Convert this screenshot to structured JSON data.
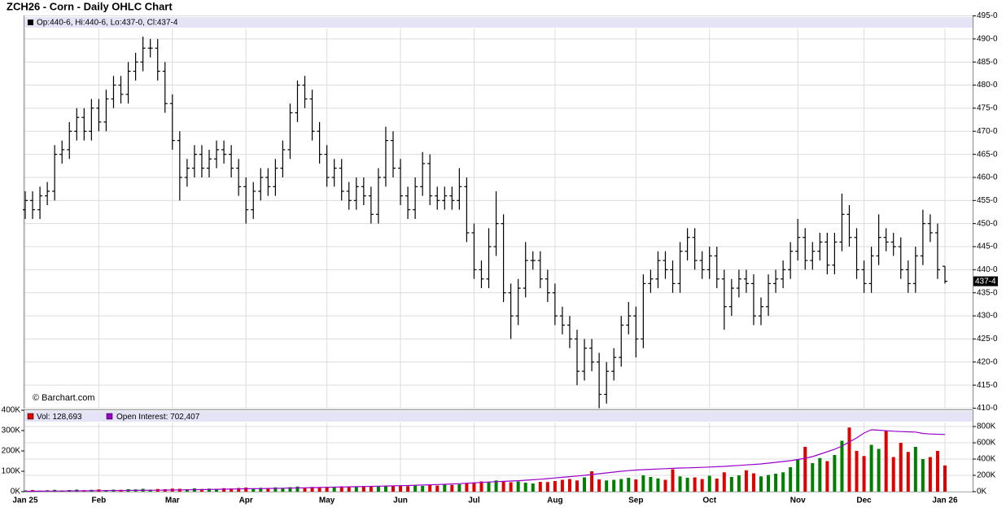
{
  "chart_data": [
    {
      "type": "ohlc",
      "title": "ZCH26 - Corn - Daily OHLC Chart",
      "header": "Op:440-6, Hi:440-6, Lo:437-0, Cl:437-4",
      "source": "© Barchart.com",
      "color": "#000000",
      "grid": true,
      "open": [
        453,
        455,
        453,
        456,
        457,
        465,
        466,
        470,
        473,
        470,
        475,
        472,
        477,
        480,
        478,
        483,
        485,
        488,
        488,
        483,
        476,
        468,
        460,
        462,
        465,
        462,
        464,
        466,
        465,
        462,
        458,
        453,
        457,
        460,
        458,
        462,
        466,
        474,
        480,
        477,
        470,
        465,
        460,
        462,
        457,
        455,
        458,
        456,
        452,
        460,
        468,
        462,
        456,
        453,
        458,
        463,
        456,
        455,
        456,
        455,
        458,
        448,
        440,
        438,
        445,
        450,
        435,
        430,
        436,
        442,
        442,
        438,
        435,
        430,
        428,
        425,
        418,
        423,
        420,
        413,
        418,
        421,
        428,
        430,
        425,
        437,
        438,
        442,
        440,
        437,
        444,
        447,
        442,
        440,
        443,
        438,
        432,
        436,
        438,
        437,
        430,
        432,
        437,
        438,
        440,
        444,
        447,
        442,
        444,
        446,
        441,
        446,
        452,
        447,
        440,
        437,
        443,
        447,
        446,
        445,
        440,
        437,
        443,
        450,
        448,
        440.75
      ],
      "high": [
        457,
        457,
        458,
        459,
        467,
        468,
        472,
        475,
        475,
        477,
        477,
        479,
        482,
        482,
        485,
        487,
        490.5,
        490,
        490,
        485,
        478,
        470,
        464,
        467,
        467,
        466,
        468,
        468,
        467,
        464,
        460,
        459,
        462,
        462,
        464,
        468,
        476,
        481,
        482,
        479,
        472,
        467,
        464,
        464,
        459,
        460,
        460,
        458,
        462,
        471,
        470,
        464,
        458,
        460,
        465.5,
        465,
        458,
        458,
        458,
        462,
        460,
        450,
        442,
        449,
        457,
        452,
        437,
        438,
        446,
        444,
        444,
        440,
        437,
        432,
        430,
        427,
        425,
        425,
        422,
        420,
        423,
        430,
        433,
        432,
        439,
        440,
        444,
        444,
        442,
        446,
        449,
        449,
        444,
        445,
        445,
        440,
        438,
        440,
        440,
        439,
        434,
        439,
        440,
        442,
        446,
        451,
        449,
        446,
        448,
        448,
        448,
        456.5,
        454,
        449,
        442,
        445,
        452,
        449,
        448,
        447,
        442,
        445,
        453,
        452,
        450,
        440.75
      ],
      "low": [
        451,
        451,
        451,
        454,
        455,
        463,
        464,
        468,
        468,
        468,
        470,
        470,
        475,
        476,
        476,
        481,
        483,
        486,
        481,
        474,
        466,
        455,
        458,
        460,
        460,
        460,
        462,
        463,
        460,
        456,
        450,
        451,
        455,
        456,
        456,
        460,
        464,
        472,
        475,
        468,
        463,
        458,
        458,
        455,
        453,
        453,
        454,
        450,
        450,
        458,
        460,
        454,
        451,
        451,
        456,
        454,
        453,
        453,
        453,
        453,
        446,
        438,
        436,
        436,
        443,
        433,
        425,
        428,
        434,
        440,
        436,
        433,
        428,
        426,
        423,
        415,
        416,
        418,
        410,
        411,
        416,
        419,
        426,
        421,
        423,
        435,
        436,
        438,
        435,
        435,
        442,
        440,
        438,
        438,
        436,
        427,
        430,
        434,
        435,
        428,
        428,
        430,
        435,
        436,
        438,
        442,
        440,
        440,
        442,
        439,
        439,
        444,
        445,
        438,
        435,
        435,
        441,
        444,
        443,
        438,
        435,
        435,
        441,
        446,
        438,
        437
      ],
      "close": [
        455,
        453,
        456,
        457,
        465,
        466,
        470,
        473,
        470,
        475,
        472,
        477,
        480,
        478,
        483,
        485,
        488,
        488,
        483,
        476,
        468,
        460,
        462,
        465,
        462,
        464,
        466,
        465,
        462,
        458,
        453,
        457,
        460,
        458,
        462,
        466,
        474,
        480,
        477,
        470,
        465,
        460,
        462,
        457,
        455,
        458,
        456,
        452,
        460,
        468,
        462,
        456,
        453,
        458,
        463,
        456,
        455,
        456,
        455,
        458,
        448,
        440,
        438,
        445,
        450,
        435,
        430,
        436,
        442,
        442,
        438,
        435,
        430,
        428,
        425,
        418,
        423,
        420,
        413,
        418,
        421,
        428,
        430,
        425,
        437,
        438,
        442,
        440,
        437,
        444,
        447,
        442,
        440,
        443,
        438,
        432,
        436,
        438,
        437,
        430,
        432,
        437,
        438,
        440,
        444,
        447,
        442,
        444,
        446,
        441,
        446,
        452,
        447,
        440,
        437,
        443,
        447,
        446,
        445,
        440,
        437,
        443,
        450,
        448,
        440,
        437.5
      ],
      "ylim": [
        410,
        495
      ],
      "yticks": [
        {
          "value": 410,
          "label": "410-0"
        },
        {
          "value": 415,
          "label": "415-0"
        },
        {
          "value": 420,
          "label": "420-0"
        },
        {
          "value": 425,
          "label": "425-0"
        },
        {
          "value": 430,
          "label": "430-0"
        },
        {
          "value": 435,
          "label": "435-0"
        },
        {
          "value": 440,
          "label": "440-0"
        },
        {
          "value": 445,
          "label": "445-0"
        },
        {
          "value": 450,
          "label": "450-0"
        },
        {
          "value": 455,
          "label": "455-0"
        },
        {
          "value": 460,
          "label": "460-0"
        },
        {
          "value": 465,
          "label": "465-0"
        },
        {
          "value": 470,
          "label": "470-0"
        },
        {
          "value": 475,
          "label": "475-0"
        },
        {
          "value": 480,
          "label": "480-0"
        },
        {
          "value": 485,
          "label": "485-0"
        },
        {
          "value": 490,
          "label": "490-0"
        },
        {
          "value": 495,
          "label": "495-0"
        }
      ],
      "last_label": {
        "value": 437.5,
        "label": "437-4"
      }
    },
    {
      "type": "bar",
      "grid": true,
      "categories": [
        "Jan 25",
        null,
        null,
        null,
        null,
        null,
        null,
        null,
        null,
        null,
        "Feb",
        null,
        null,
        null,
        null,
        null,
        null,
        null,
        null,
        null,
        "Mar",
        null,
        null,
        null,
        null,
        null,
        null,
        null,
        null,
        null,
        "Apr",
        null,
        null,
        null,
        null,
        null,
        null,
        null,
        null,
        null,
        null,
        "May",
        null,
        null,
        null,
        null,
        null,
        null,
        null,
        null,
        null,
        "Jun",
        null,
        null,
        null,
        null,
        null,
        null,
        null,
        null,
        null,
        "Jul",
        null,
        null,
        null,
        null,
        null,
        null,
        null,
        null,
        null,
        null,
        "Aug",
        null,
        null,
        null,
        null,
        null,
        null,
        null,
        null,
        null,
        null,
        "Sep",
        null,
        null,
        null,
        null,
        null,
        null,
        null,
        null,
        null,
        "Oct",
        null,
        null,
        null,
        null,
        null,
        null,
        null,
        null,
        null,
        null,
        null,
        "Nov",
        null,
        null,
        null,
        null,
        null,
        null,
        null,
        null,
        "Dec",
        null,
        null,
        null,
        null,
        null,
        null,
        null,
        null,
        null,
        null,
        "Jan 26"
      ],
      "series": [
        {
          "name": "Vol:",
          "last_label": "128,693",
          "color": "#e00000",
          "up_color": "#008000",
          "down_color": "#e00000",
          "values": [
            6000,
            8000,
            5000,
            7000,
            9000,
            6000,
            8000,
            10000,
            7000,
            9000,
            11000,
            8000,
            10000,
            9000,
            12000,
            11000,
            14000,
            10000,
            13000,
            12000,
            15000,
            14000,
            12000,
            16000,
            13000,
            15000,
            14000,
            17000,
            15000,
            18000,
            20000,
            16000,
            19000,
            17000,
            21000,
            18000,
            22000,
            25000,
            20000,
            23000,
            21000,
            24000,
            22000,
            26000,
            23000,
            25000,
            27000,
            24000,
            28000,
            30000,
            26000,
            29000,
            27000,
            31000,
            28000,
            32000,
            30000,
            34000,
            33000,
            36000,
            42000,
            45000,
            50000,
            48000,
            55000,
            52000,
            46000,
            50000,
            44000,
            40000,
            48000,
            47000,
            52000,
            58000,
            62000,
            55000,
            70000,
            100000,
            60000,
            55000,
            58000,
            62000,
            68000,
            60000,
            80000,
            72000,
            65000,
            58000,
            110000,
            75000,
            68000,
            70000,
            62000,
            78000,
            64000,
            95000,
            72000,
            80000,
            105000,
            90000,
            75000,
            82000,
            88000,
            95000,
            120000,
            160000,
            220000,
            140000,
            165000,
            150000,
            180000,
            250000,
            315000,
            200000,
            175000,
            230000,
            210000,
            300000,
            170000,
            240000,
            195000,
            220000,
            160000,
            170000,
            200000,
            128693
          ]
        },
        {
          "name": "Open Interest:",
          "last_label": "702,407",
          "color": "#9900cc",
          "axis": "y2",
          "values": [
            5000,
            5500,
            6000,
            6800,
            7500,
            8200,
            9000,
            9800,
            10500,
            11200,
            12000,
            12800,
            13500,
            14200,
            15000,
            15800,
            16500,
            17200,
            18000,
            19000,
            20000,
            21000,
            22500,
            24000,
            25500,
            27000,
            28500,
            30000,
            31500,
            33000,
            34500,
            36000,
            37500,
            39000,
            40500,
            42000,
            43500,
            45000,
            47000,
            49000,
            51000,
            53000,
            55000,
            57000,
            59000,
            61000,
            63000,
            65000,
            67000,
            69000,
            71000,
            73000,
            75000,
            78000,
            81000,
            84000,
            87000,
            90000,
            94000,
            98000,
            103000,
            108000,
            113000,
            118000,
            122000,
            126000,
            130000,
            134000,
            140000,
            146000,
            152000,
            160000,
            168000,
            176000,
            184000,
            192000,
            200000,
            210000,
            220000,
            230000,
            240000,
            250000,
            258000,
            265000,
            270000,
            274000,
            278000,
            282000,
            286000,
            290000,
            292000,
            295000,
            298000,
            302000,
            306000,
            310000,
            316000,
            322000,
            328000,
            334000,
            340000,
            350000,
            360000,
            370000,
            380000,
            395000,
            410000,
            430000,
            460000,
            490000,
            520000,
            560000,
            610000,
            660000,
            720000,
            760000,
            755000,
            748000,
            742000,
            738000,
            735000,
            732000,
            715000,
            708000,
            705000,
            702407
          ]
        }
      ],
      "ylim": [
        0,
        400000
      ],
      "yticks": [
        {
          "value": 0,
          "label": "0K"
        },
        {
          "value": 100000,
          "label": "100K"
        },
        {
          "value": 200000,
          "label": "200K"
        },
        {
          "value": 300000,
          "label": "300K"
        },
        {
          "value": 400000,
          "label": "400K"
        }
      ],
      "y2lim": [
        0,
        1000000
      ],
      "y2ticks": [
        {
          "value": 0,
          "label": "0K"
        },
        {
          "value": 200000,
          "label": "200K"
        },
        {
          "value": 400000,
          "label": "400K"
        },
        {
          "value": 600000,
          "label": "600K"
        },
        {
          "value": 800000,
          "label": "800K"
        }
      ]
    }
  ]
}
